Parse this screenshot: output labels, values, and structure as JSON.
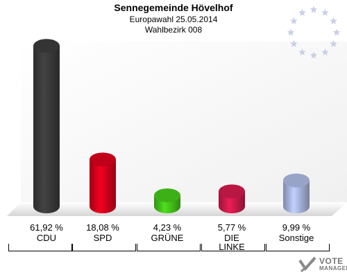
{
  "header": {
    "title": "Sennegemeinde Hövelhof",
    "subtitle1": "Europawahl 25.05.2014",
    "subtitle2": "Wahlbezirk 008"
  },
  "chart_data": {
    "type": "bar",
    "title": "Sennegemeinde Hövelhof",
    "subtitle": [
      "Europawahl 25.05.2014",
      "Wahlbezirk 008"
    ],
    "categories": [
      "CDU",
      "SPD",
      "GRÜNE",
      "DIE LINKE",
      "Sonstige"
    ],
    "category_lines": [
      [
        "CDU"
      ],
      [
        "SPD"
      ],
      [
        "GRÜNE"
      ],
      [
        "DIE",
        "LINKE"
      ],
      [
        "Sonstige"
      ]
    ],
    "values": [
      61.92,
      18.08,
      4.23,
      5.77,
      9.99
    ],
    "value_labels": [
      "61,92 %",
      "18,08 %",
      "4,23 %",
      "5,77 %",
      "9,99 %"
    ],
    "colors": [
      "#3a3a3a",
      "#d5001c",
      "#44c31a",
      "#cc1a4a",
      "#a8b5dd"
    ],
    "unit": "%",
    "ylim": [
      0,
      62
    ],
    "grid": false,
    "legend": "none"
  },
  "branding": {
    "logo_line1": "VOTE",
    "logo_line2": "MANAGER"
  }
}
